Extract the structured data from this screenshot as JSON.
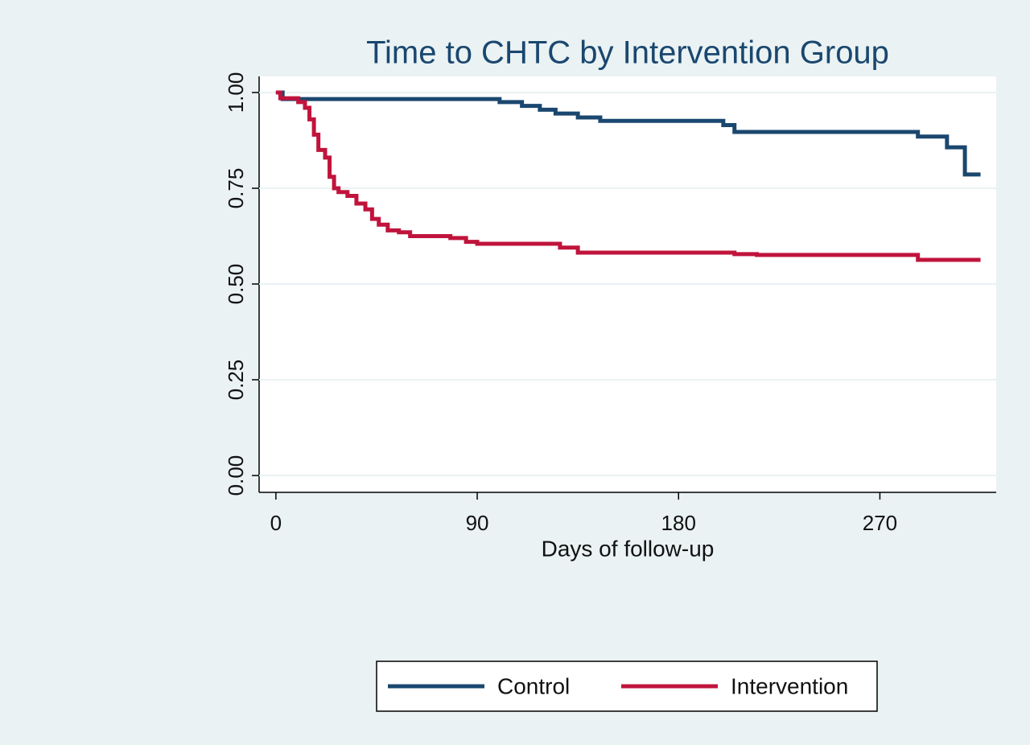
{
  "chart_data": {
    "type": "step",
    "title": "Time to CHTC by Intervention Group",
    "x_label": "Days of follow-up",
    "xlim": [
      -7.5,
      322
    ],
    "ylim": [
      -0.044,
      1.042
    ],
    "xticks": [
      0,
      90,
      180,
      270
    ],
    "yticks": [
      {
        "value": 0,
        "label": "0.00"
      },
      0.25,
      {
        "value": 0.5,
        "label": "0.50"
      },
      0.75,
      {
        "value": 1,
        "label": "1.00"
      }
    ],
    "grid": true,
    "legend_position": "bottom",
    "series": [
      {
        "name": "Control",
        "color": "#1a476f",
        "x": [
          0,
          3,
          100,
          110,
          118,
          125,
          135,
          145,
          200,
          205,
          287,
          300,
          308,
          315
        ],
        "values": [
          1,
          0.983,
          0.975,
          0.965,
          0.955,
          0.945,
          0.935,
          0.926,
          0.915,
          0.897,
          0.885,
          0.857,
          0.786,
          0.786
        ]
      },
      {
        "name": "Intervention",
        "color": "#c0143c",
        "x": [
          0,
          2,
          10,
          13,
          15,
          17,
          19,
          22,
          24,
          26,
          28,
          32,
          36,
          40,
          43,
          46,
          50,
          55,
          60,
          78,
          85,
          90,
          127,
          135,
          205,
          215,
          287,
          315
        ],
        "values": [
          1,
          0.985,
          0.975,
          0.96,
          0.93,
          0.89,
          0.85,
          0.83,
          0.78,
          0.75,
          0.74,
          0.73,
          0.71,
          0.695,
          0.67,
          0.655,
          0.64,
          0.635,
          0.625,
          0.62,
          0.61,
          0.605,
          0.595,
          0.582,
          0.578,
          0.576,
          0.563,
          0.563
        ]
      }
    ]
  }
}
